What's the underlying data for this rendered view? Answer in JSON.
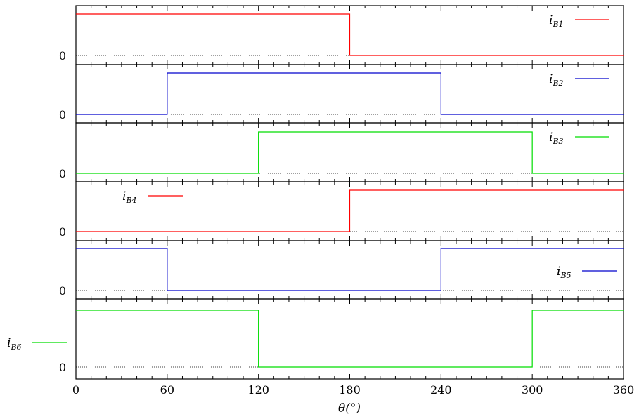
{
  "chart_data": {
    "type": "line",
    "xlabel": "θ(°)",
    "xlim": [
      0,
      360
    ],
    "x_ticks": [
      0,
      60,
      120,
      180,
      240,
      300,
      360
    ],
    "x_tick_labels": [
      "0",
      "60",
      "120",
      "180",
      "240",
      "300",
      "360"
    ],
    "grid": false,
    "panels": [
      {
        "name": "i",
        "sub": "B1",
        "zero_label": "0",
        "color": "#ff0000",
        "legend": "top-right",
        "x": [
          0,
          180,
          180,
          360
        ],
        "y": [
          1,
          1,
          0,
          0
        ]
      },
      {
        "name": "i",
        "sub": "B2",
        "zero_label": "0",
        "color": "#0000cc",
        "legend": "top-right",
        "x": [
          0,
          60,
          60,
          240,
          240,
          360
        ],
        "y": [
          0,
          0,
          1,
          1,
          0,
          0
        ]
      },
      {
        "name": "i",
        "sub": "B3",
        "zero_label": "0",
        "color": "#00dd00",
        "legend": "top-right",
        "x": [
          0,
          120,
          120,
          300,
          300,
          360
        ],
        "y": [
          0,
          0,
          1,
          1,
          0,
          0
        ]
      },
      {
        "name": "i",
        "sub": "B4",
        "zero_label": "0",
        "color": "#ff0000",
        "legend": "top-left",
        "x": [
          0,
          180,
          180,
          360
        ],
        "y": [
          0,
          0,
          1,
          1
        ]
      },
      {
        "name": "i",
        "sub": "B5",
        "zero_label": "0",
        "color": "#0000cc",
        "legend": "right",
        "x": [
          0,
          60,
          60,
          240,
          240,
          360
        ],
        "y": [
          1,
          1,
          0,
          0,
          1,
          1
        ]
      },
      {
        "name": "i",
        "sub": "B6",
        "zero_label": "0",
        "color": "#00dd00",
        "legend": "outside-left",
        "x": [
          0,
          120,
          120,
          300,
          300,
          360
        ],
        "y": [
          1,
          1,
          0,
          0,
          1,
          1
        ]
      }
    ]
  }
}
